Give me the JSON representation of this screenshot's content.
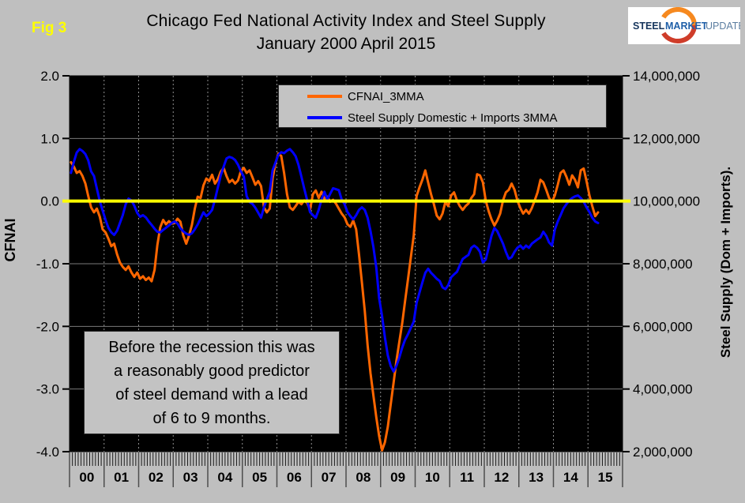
{
  "page": {
    "background": "#bfbfbf",
    "fig_label": "Fig 3"
  },
  "title": {
    "line1": "Chicago Fed National Activity Index and Steel Supply",
    "line2": "January 2000 April 2015"
  },
  "logo": {
    "word1": "STEEL",
    "word2": "MARKET",
    "word3": "UPDATE",
    "word1_color": "#17365d",
    "word2_color": "#1f5fa8",
    "word3_color": "#5b7da0",
    "arc_top_color": "#f6891f",
    "arc_bottom_color": "#cf3d2a"
  },
  "legend": {
    "items": [
      {
        "label": "CFNAI_3MMA",
        "color": "#ff6600"
      },
      {
        "label": "Steel Supply Domestic + Imports 3MMA",
        "color": "#0000ff"
      }
    ]
  },
  "annotation": {
    "line1": "Before the recession this was",
    "line2": "a reasonably good predictor",
    "line3": "of steel demand with a lead",
    "line4": "of 6 to 9 months."
  },
  "chart_data": {
    "type": "line",
    "title": "Chicago Fed National Activity Index and Steel Supply",
    "subtitle": "January 2000 April 2015",
    "plot_background": "#000000",
    "grid": {
      "h_color": "#7a7a7a",
      "v_color": "#8f8f8f",
      "v_style": "dotted",
      "h_on": true,
      "v_on": true
    },
    "zero_line": {
      "axis": "left",
      "value": 0.0,
      "color": "#ffff00"
    },
    "x_axis": {
      "start": "2000-01",
      "axis_end": "2015-12",
      "data_end": "2015-04",
      "minor_tick": "month",
      "year_labels": [
        "00",
        "01",
        "02",
        "03",
        "04",
        "05",
        "06",
        "07",
        "08",
        "09",
        "10",
        "11",
        "12",
        "13",
        "14",
        "15"
      ]
    },
    "y_left": {
      "label": "CFNAI",
      "min": -4.0,
      "max": 2.0,
      "tick_values": [
        2.0,
        1.0,
        0.0,
        -1.0,
        -2.0,
        -3.0,
        -4.0
      ],
      "tick_labels": [
        "2.0",
        "1.0",
        "0.0",
        "-1.0",
        "-2.0",
        "-3.0",
        "-4.0"
      ]
    },
    "y_right": {
      "label": "Steel Supply (Dom + Imports).",
      "min": 2000000,
      "max": 14000000,
      "tick_values_millions": [
        14,
        12,
        10,
        8,
        6,
        4,
        2
      ],
      "tick_labels": [
        "14,000,000",
        "12,000,000",
        "10,000,000",
        "8,000,000",
        "6,000,000",
        "4,000,000",
        "2,000,000"
      ]
    },
    "series": [
      {
        "name": "CFNAI_3MMA",
        "color": "#ff6600",
        "axis": "left",
        "start": "2000-01",
        "values": [
          0.62,
          0.55,
          0.45,
          0.48,
          0.4,
          0.28,
          0.08,
          -0.1,
          -0.18,
          -0.12,
          -0.25,
          -0.45,
          -0.5,
          -0.6,
          -0.72,
          -0.68,
          -0.85,
          -0.98,
          -1.05,
          -1.1,
          -1.04,
          -1.14,
          -1.21,
          -1.14,
          -1.24,
          -1.2,
          -1.26,
          -1.22,
          -1.28,
          -1.1,
          -0.7,
          -0.42,
          -0.3,
          -0.37,
          -0.32,
          -0.36,
          -0.35,
          -0.28,
          -0.33,
          -0.55,
          -0.68,
          -0.55,
          -0.38,
          -0.12,
          0.07,
          0.05,
          0.25,
          0.36,
          0.32,
          0.42,
          0.28,
          0.35,
          0.47,
          0.53,
          0.4,
          0.3,
          0.34,
          0.28,
          0.33,
          0.48,
          0.53,
          0.45,
          0.49,
          0.38,
          0.26,
          0.32,
          0.24,
          -0.1,
          -0.18,
          -0.12,
          0.36,
          0.6,
          0.76,
          0.72,
          0.45,
          0.11,
          -0.1,
          -0.14,
          -0.08,
          -0.01,
          -0.05,
          0.01,
          -0.03,
          -0.14,
          0.11,
          0.17,
          0.05,
          0.15,
          0.03,
          0.07,
          -0.01,
          0.02,
          -0.04,
          -0.12,
          -0.2,
          -0.26,
          -0.37,
          -0.41,
          -0.31,
          -0.45,
          -0.85,
          -1.3,
          -1.75,
          -2.3,
          -2.75,
          -3.1,
          -3.45,
          -3.75,
          -3.98,
          -3.85,
          -3.6,
          -3.25,
          -2.9,
          -2.55,
          -2.25,
          -1.95,
          -1.6,
          -1.25,
          -0.9,
          -0.55,
          0.08,
          0.22,
          0.34,
          0.49,
          0.3,
          0.11,
          -0.05,
          -0.23,
          -0.29,
          -0.2,
          -0.01,
          -0.08,
          0.09,
          0.14,
          0.01,
          -0.08,
          -0.14,
          -0.08,
          -0.04,
          0.05,
          0.11,
          0.43,
          0.41,
          0.3,
          0.01,
          -0.16,
          -0.29,
          -0.39,
          -0.31,
          -0.2,
          0.01,
          0.14,
          0.18,
          0.28,
          0.18,
          0.01,
          -0.11,
          -0.2,
          -0.14,
          -0.2,
          -0.11,
          0.01,
          0.14,
          0.34,
          0.3,
          0.18,
          0.05,
          -0.01,
          0.09,
          0.26,
          0.45,
          0.49,
          0.39,
          0.26,
          0.41,
          0.34,
          0.22,
          0.49,
          0.52,
          0.32,
          0.09,
          -0.08,
          -0.24,
          -0.18
        ]
      },
      {
        "name": "Steel Supply Domestic + Imports 3MMA",
        "color": "#0000ff",
        "axis": "right",
        "unit": "millions",
        "start": "2000-01",
        "values": [
          10.9,
          11.25,
          11.55,
          11.66,
          11.6,
          11.5,
          11.3,
          10.95,
          10.8,
          10.4,
          10.0,
          9.7,
          9.4,
          9.15,
          9.0,
          8.92,
          9.05,
          9.3,
          9.55,
          9.9,
          10.08,
          10.02,
          9.85,
          9.62,
          9.5,
          9.55,
          9.48,
          9.35,
          9.24,
          9.12,
          9.02,
          9.0,
          9.08,
          9.15,
          9.22,
          9.3,
          9.35,
          9.28,
          9.13,
          9.03,
          8.96,
          8.92,
          8.97,
          9.1,
          9.25,
          9.45,
          9.64,
          9.52,
          9.6,
          9.72,
          10.05,
          10.44,
          10.82,
          11.1,
          11.36,
          11.41,
          11.38,
          11.31,
          11.16,
          10.95,
          10.78,
          10.16,
          9.97,
          9.91,
          9.79,
          9.63,
          9.47,
          9.8,
          10.05,
          10.3,
          10.98,
          11.23,
          11.48,
          11.56,
          11.53,
          11.61,
          11.66,
          11.56,
          11.43,
          11.16,
          10.78,
          10.4,
          10.03,
          9.65,
          9.55,
          9.47,
          9.72,
          10.05,
          10.3,
          10.05,
          10.23,
          10.41,
          10.38,
          10.35,
          10.05,
          9.9,
          9.65,
          9.52,
          9.42,
          9.55,
          9.72,
          9.8,
          9.72,
          9.47,
          9.04,
          8.54,
          7.88,
          6.9,
          6.33,
          5.65,
          5.07,
          4.74,
          4.56,
          4.74,
          5.0,
          5.32,
          5.57,
          5.75,
          5.95,
          6.15,
          6.75,
          7.08,
          7.4,
          7.71,
          7.84,
          7.71,
          7.62,
          7.52,
          7.45,
          7.25,
          7.19,
          7.32,
          7.57,
          7.66,
          7.74,
          7.95,
          8.15,
          8.22,
          8.28,
          8.51,
          8.58,
          8.51,
          8.38,
          8.04,
          8.13,
          8.51,
          8.89,
          9.14,
          9.04,
          8.84,
          8.64,
          8.38,
          8.16,
          8.21,
          8.38,
          8.51,
          8.58,
          8.48,
          8.58,
          8.51,
          8.64,
          8.71,
          8.78,
          8.84,
          9.02,
          8.89,
          8.68,
          8.58,
          9.09,
          9.35,
          9.55,
          9.77,
          9.9,
          10.02,
          10.1,
          10.15,
          10.18,
          10.1,
          9.98,
          9.8,
          9.65,
          9.47,
          9.35,
          9.3
        ]
      }
    ]
  }
}
